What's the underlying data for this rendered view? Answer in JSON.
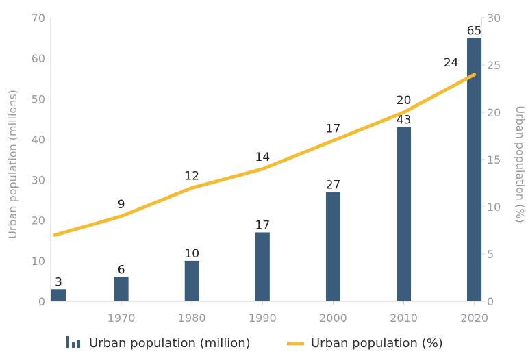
{
  "chart_data": {
    "type": "bar",
    "x": [
      1961,
      1970,
      1980,
      1990,
      2000,
      2010,
      2020
    ],
    "x_tick_labels": [
      "1970",
      "1980",
      "1990",
      "2000",
      "2010",
      "2020"
    ],
    "series": [
      {
        "name": "Urban population (million)",
        "type": "bar",
        "axis": "left",
        "values": [
          3,
          6,
          10,
          17,
          27,
          43,
          65
        ],
        "labels": [
          "3",
          "6",
          "10",
          "17",
          "27",
          "43",
          "65"
        ],
        "color": "#3c5c7b"
      },
      {
        "name": "Urban population (%)",
        "type": "line",
        "axis": "right",
        "values": [
          7,
          9,
          12,
          14,
          17,
          20,
          24
        ],
        "labels": [
          "",
          "9",
          "12",
          "14",
          "17",
          "20",
          "24"
        ],
        "color": "#f4bc34"
      }
    ],
    "ylabel": "Urban population (millions)",
    "ylabel_right": "Urban population (%)",
    "ylim": [
      0,
      70
    ],
    "ylim_right": [
      0,
      30
    ],
    "y_ticks": [
      "0",
      "10",
      "20",
      "30",
      "40",
      "50",
      "60",
      "70"
    ],
    "y_ticks_right": [
      "0",
      "5",
      "10",
      "15",
      "20",
      "25",
      "30"
    ],
    "xlim": [
      1960,
      2021
    ],
    "grid": false,
    "legend": "bottom"
  }
}
